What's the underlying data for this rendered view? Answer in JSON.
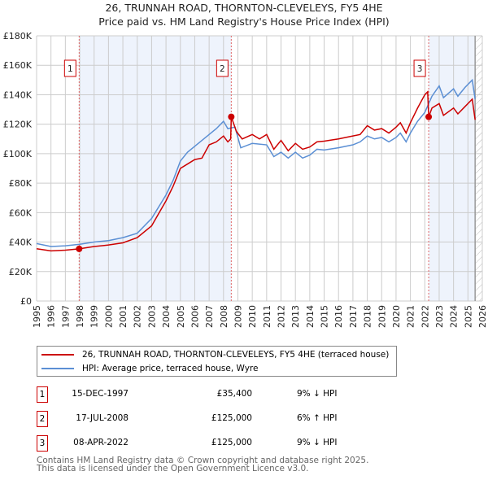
{
  "chart_data": {
    "type": "line",
    "title": "26, TRUNNAH ROAD, THORNTON-CLEVELEYS, FY5 4HE",
    "subtitle": "Price paid vs. HM Land Registry's House Price Index (HPI)",
    "xlim": [
      1995,
      2026
    ],
    "ylim": [
      0,
      180000
    ],
    "x_ticks": [
      "1995",
      "1996",
      "1997",
      "1998",
      "1999",
      "2000",
      "2001",
      "2002",
      "2003",
      "2004",
      "2005",
      "2006",
      "2007",
      "2008",
      "2009",
      "2010",
      "2011",
      "2012",
      "2013",
      "2014",
      "2015",
      "2016",
      "2017",
      "2018",
      "2019",
      "2020",
      "2021",
      "2022",
      "2023",
      "2024",
      "2025",
      "2026"
    ],
    "y_ticks": [
      {
        "v": 0,
        "label": "£0"
      },
      {
        "v": 20000,
        "label": "£20K"
      },
      {
        "v": 40000,
        "label": "£40K"
      },
      {
        "v": 60000,
        "label": "£60K"
      },
      {
        "v": 80000,
        "label": "£80K"
      },
      {
        "v": 100000,
        "label": "£100K"
      },
      {
        "v": 120000,
        "label": "£120K"
      },
      {
        "v": 140000,
        "label": "£140K"
      },
      {
        "v": 160000,
        "label": "£160K"
      },
      {
        "v": 180000,
        "label": "£180K"
      }
    ],
    "shaded_ranges": [
      [
        1997.96,
        2008.54
      ],
      [
        2022.27,
        2025.5
      ]
    ],
    "forecast_from": 2025.5,
    "series": [
      {
        "name": "26, TRUNNAH ROAD, THORNTON-CLEVELEYS, FY5 4HE (terraced house)",
        "color": "#cc0000",
        "points": [
          [
            1995,
            35500
          ],
          [
            1996,
            34000
          ],
          [
            1997,
            34500
          ],
          [
            1997.96,
            35400
          ],
          [
            1999,
            37000
          ],
          [
            2000,
            38000
          ],
          [
            2001,
            39500
          ],
          [
            2002,
            43000
          ],
          [
            2003,
            51000
          ],
          [
            2004,
            68000
          ],
          [
            2004.5,
            78000
          ],
          [
            2005,
            90000
          ],
          [
            2005.5,
            93000
          ],
          [
            2006,
            96000
          ],
          [
            2006.5,
            97000
          ],
          [
            2007,
            106000
          ],
          [
            2007.5,
            108000
          ],
          [
            2008,
            112000
          ],
          [
            2008.3,
            108000
          ],
          [
            2008.5,
            110000
          ],
          [
            2008.54,
            125000
          ],
          [
            2008.9,
            115000
          ],
          [
            2009.3,
            110000
          ],
          [
            2010,
            113000
          ],
          [
            2010.5,
            110000
          ],
          [
            2011,
            113000
          ],
          [
            2011.5,
            103000
          ],
          [
            2012,
            109000
          ],
          [
            2012.5,
            102000
          ],
          [
            2013,
            107000
          ],
          [
            2013.5,
            103000
          ],
          [
            2014,
            104500
          ],
          [
            2014.5,
            108000
          ],
          [
            2015,
            108500
          ],
          [
            2016,
            110000
          ],
          [
            2017,
            112000
          ],
          [
            2017.5,
            113000
          ],
          [
            2018,
            119000
          ],
          [
            2018.5,
            116000
          ],
          [
            2019,
            117000
          ],
          [
            2019.5,
            114000
          ],
          [
            2020,
            118000
          ],
          [
            2020.3,
            121000
          ],
          [
            2020.7,
            114000
          ],
          [
            2021,
            121000
          ],
          [
            2021.5,
            131000
          ],
          [
            2022,
            140000
          ],
          [
            2022.2,
            142000
          ],
          [
            2022.27,
            125000
          ],
          [
            2022.5,
            131000
          ],
          [
            2023,
            134000
          ],
          [
            2023.3,
            126000
          ],
          [
            2024,
            131000
          ],
          [
            2024.3,
            127000
          ],
          [
            2024.8,
            132000
          ],
          [
            2025.3,
            137000
          ],
          [
            2025.5,
            123000
          ]
        ]
      },
      {
        "name": "HPI: Average price, terraced house, Wyre",
        "color": "#5b8fd4",
        "points": [
          [
            1995,
            39000
          ],
          [
            1996,
            37000
          ],
          [
            1997,
            37500
          ],
          [
            1998,
            38500
          ],
          [
            1999,
            40000
          ],
          [
            2000,
            41000
          ],
          [
            2001,
            43000
          ],
          [
            2002,
            46000
          ],
          [
            2003,
            56000
          ],
          [
            2004,
            72000
          ],
          [
            2004.5,
            82000
          ],
          [
            2005,
            95000
          ],
          [
            2005.5,
            101000
          ],
          [
            2006,
            105000
          ],
          [
            2007,
            113000
          ],
          [
            2007.5,
            117000
          ],
          [
            2008,
            122000
          ],
          [
            2008.3,
            117000
          ],
          [
            2008.8,
            118000
          ],
          [
            2009.2,
            104000
          ],
          [
            2010,
            107000
          ],
          [
            2011,
            106000
          ],
          [
            2011.5,
            98000
          ],
          [
            2012,
            101000
          ],
          [
            2012.5,
            97000
          ],
          [
            2013,
            101000
          ],
          [
            2013.5,
            97000
          ],
          [
            2014,
            99000
          ],
          [
            2014.5,
            103000
          ],
          [
            2015,
            102500
          ],
          [
            2016,
            104000
          ],
          [
            2017,
            106000
          ],
          [
            2017.5,
            108000
          ],
          [
            2018,
            112000
          ],
          [
            2018.5,
            110000
          ],
          [
            2019,
            111000
          ],
          [
            2019.5,
            108000
          ],
          [
            2020,
            111000
          ],
          [
            2020.3,
            114000
          ],
          [
            2020.7,
            108000
          ],
          [
            2021,
            114000
          ],
          [
            2021.5,
            122000
          ],
          [
            2022,
            128000
          ],
          [
            2022.5,
            139000
          ],
          [
            2023,
            146000
          ],
          [
            2023.3,
            138000
          ],
          [
            2024,
            144000
          ],
          [
            2024.3,
            139000
          ],
          [
            2024.8,
            145000
          ],
          [
            2025.3,
            150000
          ],
          [
            2025.5,
            137000
          ]
        ]
      }
    ],
    "sales": [
      {
        "num": "1",
        "x": 1997.96,
        "value": 35400,
        "date": "15-DEC-1997",
        "price": "£35,400",
        "hpi": "9% ↓ HPI"
      },
      {
        "num": "2",
        "x": 2008.54,
        "value": 125000,
        "date": "17-JUL-2008",
        "price": "£125,000",
        "hpi": "6% ↑ HPI"
      },
      {
        "num": "3",
        "x": 2022.27,
        "value": 125000,
        "date": "08-APR-2022",
        "price": "£125,000",
        "hpi": "9% ↓ HPI"
      }
    ]
  },
  "footer": {
    "line1": "Contains HM Land Registry data © Crown copyright and database right 2025.",
    "line2": "This data is licensed under the Open Government Licence v3.0."
  }
}
